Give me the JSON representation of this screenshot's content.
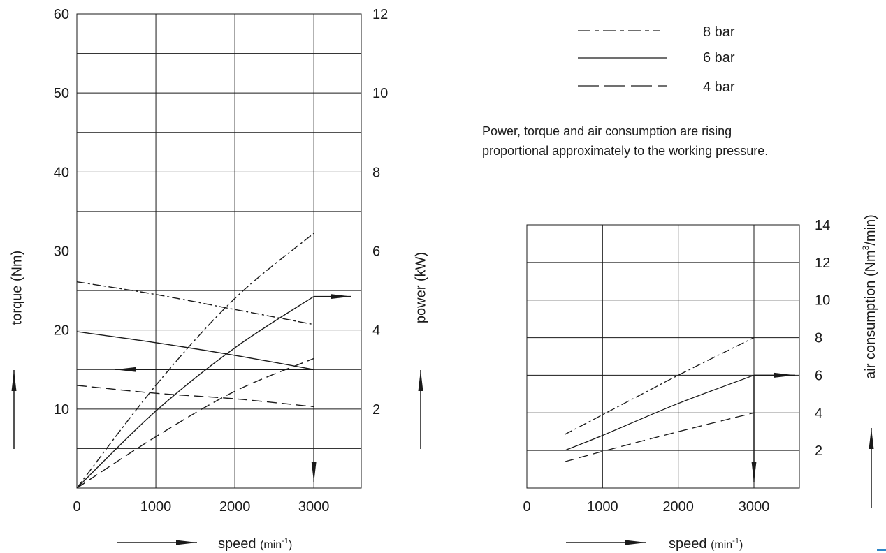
{
  "legend": [
    {
      "label": "8 bar",
      "style": "dash-dot"
    },
    {
      "label": "6 bar",
      "style": "solid"
    },
    {
      "label": "4 bar",
      "style": "dashed"
    }
  ],
  "note_lines": [
    "Power, torque and air consumption are rising",
    "proportional approximately to the working pressure."
  ],
  "chart_data": [
    {
      "type": "line",
      "xlabel": "speed",
      "xunit_base": "(min",
      "xunit_sup": "-1",
      "xunit_close": ")",
      "ylabel_left": "torque (Nm)",
      "ylabel_right": "power (kW)",
      "xlim": [
        0,
        3600
      ],
      "ylim_left": [
        0,
        60
      ],
      "ylim_right": [
        0,
        12
      ],
      "x_ticks": [
        0,
        1000,
        2000,
        3000
      ],
      "x_tick_labels": [
        "0",
        "1000",
        "2000",
        "3000"
      ],
      "y_left_tick_labels": [
        {
          "value": 10,
          "label": "10"
        },
        {
          "value": 20,
          "label": "20"
        },
        {
          "value": 30,
          "label": "30"
        },
        {
          "value": 40,
          "label": "40"
        },
        {
          "value": 50,
          "label": "50"
        },
        {
          "value": 60,
          "label": "60"
        }
      ],
      "y_right_tick_labels": [
        {
          "value": 2,
          "label": "2"
        },
        {
          "value": 4,
          "label": "4"
        },
        {
          "value": 6,
          "label": "6"
        },
        {
          "value": 8,
          "label": "8"
        },
        {
          "value": 10,
          "label": "10"
        },
        {
          "value": 12,
          "label": "12"
        }
      ],
      "torque_series": [
        {
          "name": "8 bar",
          "style": "dash-dot",
          "x": [
            0,
            1000,
            2000,
            3000
          ],
          "y": [
            26.1,
            24.5,
            22.6,
            20.7
          ]
        },
        {
          "name": "6 bar",
          "style": "solid",
          "x": [
            0,
            1000,
            2000,
            3000
          ],
          "y": [
            19.8,
            18.4,
            16.8,
            15.0
          ]
        },
        {
          "name": "4 bar",
          "style": "dashed",
          "x": [
            0,
            1000,
            2000,
            3000
          ],
          "y": [
            13.0,
            12.0,
            11.3,
            10.3
          ]
        }
      ],
      "power_series": [
        {
          "name": "8 bar",
          "style": "dash-dot",
          "x": [
            0,
            1000,
            2000,
            3000
          ],
          "y": [
            0,
            2.6,
            4.8,
            6.45
          ]
        },
        {
          "name": "6 bar",
          "style": "solid",
          "x": [
            0,
            1000,
            2000,
            3000
          ],
          "y": [
            0,
            1.95,
            3.55,
            4.85
          ]
        },
        {
          "name": "4 bar",
          "style": "dashed",
          "x": [
            0,
            1000,
            2000,
            3000
          ],
          "y": [
            0,
            1.3,
            2.45,
            3.28
          ]
        }
      ],
      "annotation": {
        "speed": 3000,
        "torque": 15,
        "power": 4.85
      }
    },
    {
      "type": "line",
      "xlabel": "speed",
      "xunit_base": "(min",
      "xunit_sup": "-1",
      "xunit_close": ")",
      "ylabel_right_base": "air consumption (Nm",
      "ylabel_right_sup": "3",
      "ylabel_right_close": "/min)",
      "xlim": [
        0,
        3600
      ],
      "ylim": [
        0,
        14
      ],
      "x_tick_labels": [
        {
          "value": 0,
          "label": "0"
        },
        {
          "value": 1000,
          "label": "1000"
        },
        {
          "value": 2000,
          "label": "2000"
        },
        {
          "value": 3000,
          "label": "3000"
        }
      ],
      "y_tick_labels": [
        {
          "value": 2,
          "label": "2"
        },
        {
          "value": 4,
          "label": "4"
        },
        {
          "value": 6,
          "label": "6"
        },
        {
          "value": 8,
          "label": "8"
        },
        {
          "value": 10,
          "label": "10"
        },
        {
          "value": 12,
          "label": "12"
        },
        {
          "value": 14,
          "label": "14"
        }
      ],
      "series": [
        {
          "name": "8 bar",
          "style": "dash-dot",
          "x": [
            500,
            1000,
            2000,
            3000
          ],
          "y": [
            2.85,
            3.9,
            6.0,
            8.0
          ]
        },
        {
          "name": "6 bar",
          "style": "solid",
          "x": [
            500,
            1000,
            2000,
            3000
          ],
          "y": [
            2.0,
            2.8,
            4.5,
            6.0
          ]
        },
        {
          "name": "4 bar",
          "style": "dashed",
          "x": [
            500,
            1000,
            2000,
            3000
          ],
          "y": [
            1.4,
            1.95,
            3.0,
            4.0
          ]
        }
      ],
      "annotation": {
        "speed": 3000,
        "air": 6
      }
    }
  ]
}
